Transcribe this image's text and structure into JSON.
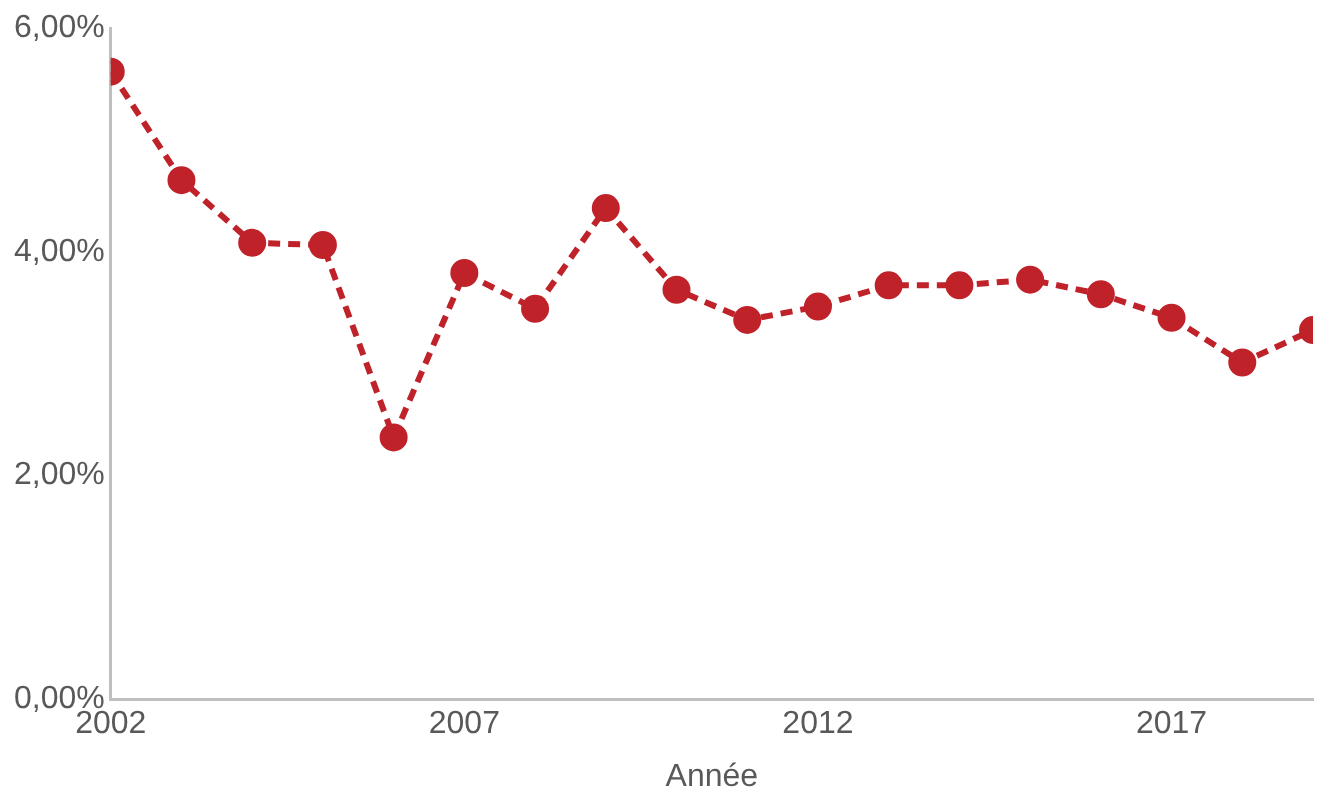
{
  "chart_data": {
    "type": "line",
    "xlabel": "Année",
    "x": [
      2002,
      2003,
      2004,
      2005,
      2006,
      2007,
      2008,
      2009,
      2010,
      2011,
      2012,
      2013,
      2014,
      2015,
      2016,
      2017,
      2018,
      2019
    ],
    "series": [
      {
        "color": "#c0222a",
        "values": [
          5.61,
          4.64,
          4.08,
          4.06,
          2.34,
          3.81,
          3.49,
          4.39,
          3.66,
          3.39,
          3.51,
          3.7,
          3.7,
          3.75,
          3.62,
          3.41,
          3.01,
          3.3
        ]
      }
    ],
    "xlim": [
      2002,
      2019
    ],
    "xticks": [
      2002,
      2007,
      2012,
      2017
    ],
    "ylim": [
      0,
      6
    ],
    "yticks": [
      {
        "value": 0,
        "label": "0,00%"
      },
      {
        "value": 2,
        "label": "2,00%"
      },
      {
        "value": 4,
        "label": "4,00%"
      },
      {
        "value": 6,
        "label": "6,00%"
      }
    ],
    "grid": false,
    "legend": false,
    "marker": "circle",
    "line_style": "dashed"
  }
}
